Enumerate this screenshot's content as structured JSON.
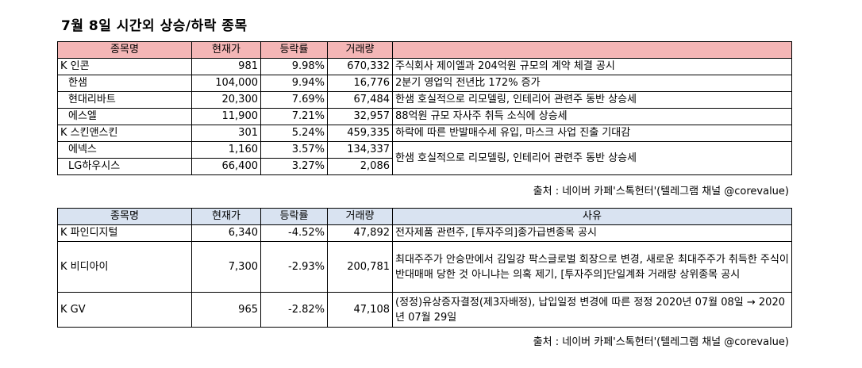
{
  "title": "7월 8일  시간외 상승/하락 종목",
  "rise_table": {
    "headers": [
      "종목명",
      "현재가",
      "등락률",
      "거래량",
      ""
    ],
    "rows": [
      {
        "market": "K",
        "name": "인콘",
        "price": "981",
        "change": "9.98%",
        "volume": "670,332",
        "reason": "주식회사 제이엘과 204억원 규모의 계약 체결 공시"
      },
      {
        "market": "",
        "name": "한샘",
        "price": "104,000",
        "change": "9.94%",
        "volume": "16,776",
        "reason": "2분기 영업익 전년比 172% 증가"
      },
      {
        "market": "",
        "name": "현대리바트",
        "price": "20,300",
        "change": "7.69%",
        "volume": "67,484",
        "reason": "한샘 호실적으로 리모델링, 인테리어 관련주 동반 상승세"
      },
      {
        "market": "",
        "name": "에스엘",
        "price": "11,900",
        "change": "7.21%",
        "volume": "32,957",
        "reason": "88억원 규모 자사주 취득 소식에 상승세"
      },
      {
        "market": "K",
        "name": "스킨앤스킨",
        "price": "301",
        "change": "5.24%",
        "volume": "459,335",
        "reason": "하락에 따른 반발매수세 유입, 마스크 사업 진출 기대감"
      },
      {
        "market": "",
        "name": "에넥스",
        "price": "1,160",
        "change": "3.57%",
        "volume": "134,337",
        "reason": "한샘 호실적으로 리모델링, 인테리어 관련주 동반 상승세"
      },
      {
        "market": "",
        "name": "LG하우시스",
        "price": "66,400",
        "change": "3.27%",
        "volume": "2,086",
        "reason": ""
      }
    ]
  },
  "source_1": "출처 : 네이버 카페'스톡헌터'(텔레그램 채널 @corevalue)",
  "fall_table": {
    "headers": [
      "종목명",
      "현재가",
      "등락률",
      "거래량",
      "사유"
    ],
    "rows": [
      {
        "market": "K",
        "name": "파인디지털",
        "price": "6,340",
        "change": "-4.52%",
        "volume": "47,892",
        "reason": "전자제품 관련주, [투자주의]종가급변종목 공시"
      },
      {
        "market": "K",
        "name": "비디아이",
        "price": "7,300",
        "change": "-2.93%",
        "volume": "200,781",
        "reason": "최대주주가 안승만에서 김일강 팍스글로벌 회장으로 변경, 새로운 최대주주가 취득한 주식이 반대매매 당한 것 아니냐는 의혹 제기, [투자주의]단일계좌 거래량 상위종목 공시"
      },
      {
        "market": "K",
        "name": "GV",
        "price": "965",
        "change": "-2.82%",
        "volume": "47,108",
        "reason": "(정정)유상증자결정(제3자배정), 납입일정 변경에 따른 정정 2020년 07월 08일 → 2020년 07월 29일"
      }
    ]
  },
  "source_2": "출처 : 네이버 카페'스톡헌터'(텔레그램 채널 @corevalue)",
  "colors": {
    "rise_header_bg": "#f4b6b6",
    "fall_header_bg": "#d9e3f1"
  }
}
